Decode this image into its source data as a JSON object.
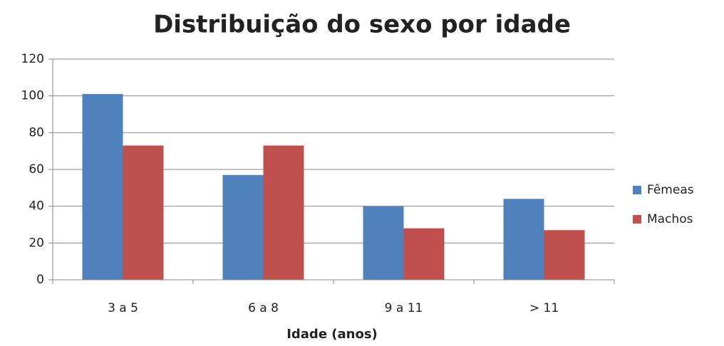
{
  "chart_data": {
    "type": "bar",
    "title": "Distribuição do sexo por idade",
    "x_label": "Idade (anos)",
    "categories": [
      "3 a 5",
      "6 a 8",
      "9 a 11",
      "> 11"
    ],
    "series": [
      {
        "name": "Fêmeas",
        "color": "#4f81bd",
        "values": [
          101,
          57,
          40,
          44
        ]
      },
      {
        "name": "Machos",
        "color": "#c0504d",
        "values": [
          73,
          73,
          28,
          27
        ]
      }
    ],
    "ylim": [
      0,
      120
    ],
    "yticks": [
      0,
      20,
      40,
      60,
      80,
      100,
      120
    ],
    "grid": true,
    "legend": "right"
  }
}
